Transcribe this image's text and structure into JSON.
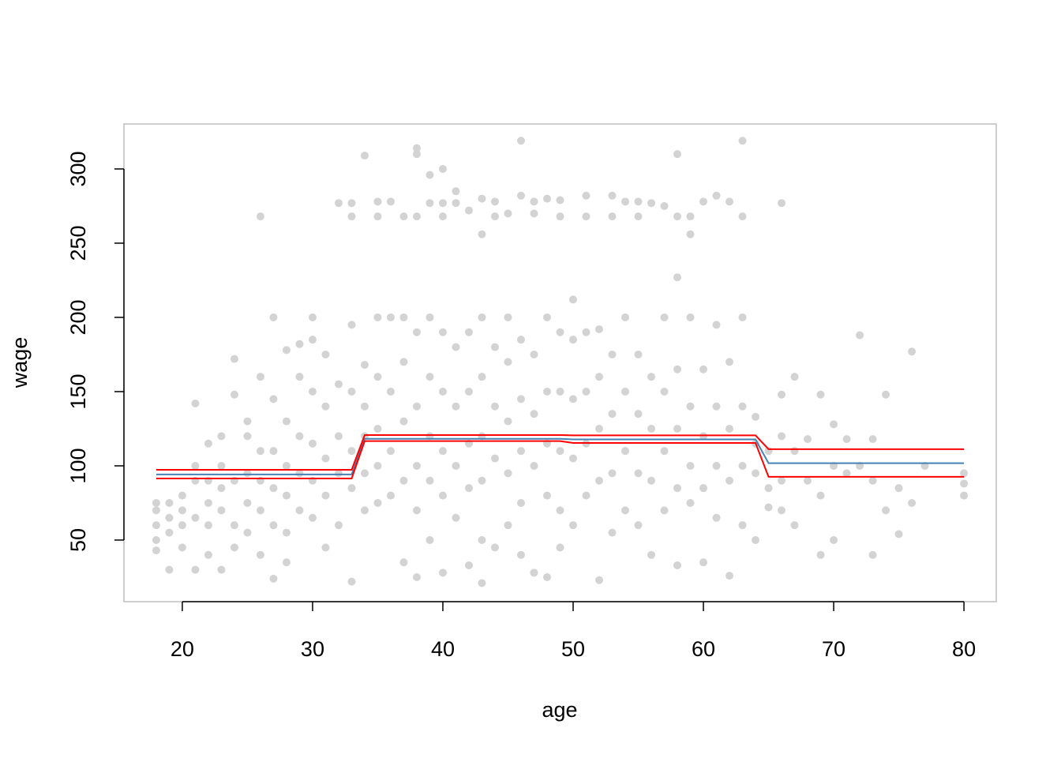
{
  "chart_data": {
    "type": "scatter",
    "xlabel": "age",
    "ylabel": "wage",
    "xlim": [
      15.52,
      82.48
    ],
    "ylim": [
      8.5,
      330.3
    ],
    "xticks": [
      20,
      30,
      40,
      50,
      60,
      70,
      80
    ],
    "yticks": [
      50,
      100,
      150,
      200,
      250,
      300
    ],
    "color": "#d3d3d3",
    "groups": [
      {
        "x": 18,
        "values": [
          70,
          60,
          50,
          75,
          43
        ]
      },
      {
        "x": 19,
        "values": [
          65,
          30,
          55,
          75
        ]
      },
      {
        "x": 20,
        "values": [
          70,
          45,
          80,
          60
        ]
      },
      {
        "x": 21,
        "values": [
          100,
          142,
          30,
          65,
          90
        ]
      },
      {
        "x": 22,
        "values": [
          90,
          115,
          60,
          40,
          75
        ]
      },
      {
        "x": 23,
        "values": [
          85,
          120,
          30,
          70,
          100
        ]
      },
      {
        "x": 24,
        "values": [
          172,
          148,
          90,
          60,
          45
        ]
      },
      {
        "x": 25,
        "values": [
          120,
          95,
          75,
          55,
          130
        ]
      },
      {
        "x": 26,
        "values": [
          268,
          160,
          110,
          90,
          70,
          40
        ]
      },
      {
        "x": 27,
        "values": [
          200,
          145,
          110,
          85,
          60,
          24
        ]
      },
      {
        "x": 28,
        "values": [
          178,
          130,
          100,
          80,
          35,
          55
        ]
      },
      {
        "x": 29,
        "values": [
          182,
          160,
          120,
          95,
          70
        ]
      },
      {
        "x": 30,
        "values": [
          200,
          185,
          150,
          115,
          90,
          65
        ]
      },
      {
        "x": 31,
        "values": [
          175,
          140,
          105,
          80,
          45
        ]
      },
      {
        "x": 32,
        "values": [
          277,
          155,
          120,
          95,
          60
        ]
      },
      {
        "x": 33,
        "values": [
          277,
          268,
          195,
          150,
          110,
          85,
          22
        ]
      },
      {
        "x": 34,
        "values": [
          309,
          168,
          140,
          120,
          95,
          70
        ]
      },
      {
        "x": 35,
        "values": [
          278,
          268,
          200,
          160,
          125,
          100,
          75
        ]
      },
      {
        "x": 36,
        "values": [
          278,
          200,
          150,
          110,
          80
        ]
      },
      {
        "x": 37,
        "values": [
          268,
          200,
          170,
          130,
          90,
          35
        ]
      },
      {
        "x": 38,
        "values": [
          314,
          310,
          268,
          190,
          140,
          100,
          70,
          25
        ]
      },
      {
        "x": 39,
        "values": [
          296,
          277,
          200,
          160,
          120,
          90,
          50
        ]
      },
      {
        "x": 40,
        "values": [
          300,
          277,
          268,
          190,
          150,
          110,
          80,
          28
        ]
      },
      {
        "x": 41,
        "values": [
          285,
          277,
          180,
          140,
          100,
          65
        ]
      },
      {
        "x": 42,
        "values": [
          272,
          190,
          150,
          115,
          85,
          33
        ]
      },
      {
        "x": 43,
        "values": [
          280,
          256,
          200,
          160,
          120,
          90,
          50,
          21
        ]
      },
      {
        "x": 44,
        "values": [
          278,
          268,
          180,
          140,
          105,
          45
        ]
      },
      {
        "x": 45,
        "values": [
          270,
          200,
          170,
          130,
          95,
          60
        ]
      },
      {
        "x": 46,
        "values": [
          319,
          282,
          185,
          145,
          110,
          75,
          40
        ]
      },
      {
        "x": 47,
        "values": [
          278,
          270,
          175,
          135,
          100,
          28
        ]
      },
      {
        "x": 48,
        "values": [
          280,
          200,
          150,
          115,
          80,
          25
        ]
      },
      {
        "x": 49,
        "values": [
          279,
          268,
          190,
          150,
          110,
          70,
          45
        ]
      },
      {
        "x": 50,
        "values": [
          212,
          185,
          145,
          105,
          60
        ]
      },
      {
        "x": 51,
        "values": [
          282,
          268,
          190,
          150,
          115,
          80
        ]
      },
      {
        "x": 52,
        "values": [
          192,
          160,
          125,
          90,
          23
        ]
      },
      {
        "x": 53,
        "values": [
          282,
          268,
          175,
          135,
          95,
          55
        ]
      },
      {
        "x": 54,
        "values": [
          278,
          200,
          150,
          110,
          70
        ]
      },
      {
        "x": 55,
        "values": [
          278,
          268,
          175,
          135,
          95,
          60
        ]
      },
      {
        "x": 56,
        "values": [
          277,
          160,
          125,
          90,
          40
        ]
      },
      {
        "x": 57,
        "values": [
          275,
          200,
          150,
          110,
          70
        ]
      },
      {
        "x": 58,
        "values": [
          310,
          268,
          227,
          165,
          125,
          85,
          33
        ]
      },
      {
        "x": 59,
        "values": [
          268,
          256,
          200,
          140,
          100,
          75
        ]
      },
      {
        "x": 60,
        "values": [
          278,
          165,
          120,
          85,
          35
        ]
      },
      {
        "x": 61,
        "values": [
          282,
          195,
          140,
          100,
          65
        ]
      },
      {
        "x": 62,
        "values": [
          278,
          170,
          125,
          90,
          26
        ]
      },
      {
        "x": 63,
        "values": [
          319,
          268,
          200,
          140,
          100,
          60
        ]
      },
      {
        "x": 64,
        "values": [
          133,
          115,
          95,
          50
        ]
      },
      {
        "x": 65,
        "values": [
          110,
          85,
          72
        ]
      },
      {
        "x": 66,
        "values": [
          277,
          148,
          120,
          90,
          70
        ]
      },
      {
        "x": 67,
        "values": [
          160,
          110,
          60
        ]
      },
      {
        "x": 68,
        "values": [
          118,
          90
        ]
      },
      {
        "x": 69,
        "values": [
          148,
          80,
          40
        ]
      },
      {
        "x": 70,
        "values": [
          128,
          100,
          50
        ]
      },
      {
        "x": 71,
        "values": [
          118,
          95
        ]
      },
      {
        "x": 72,
        "values": [
          188,
          100
        ]
      },
      {
        "x": 73,
        "values": [
          118,
          90,
          40
        ]
      },
      {
        "x": 74,
        "values": [
          148,
          70
        ]
      },
      {
        "x": 75,
        "values": [
          85,
          54
        ]
      },
      {
        "x": 76,
        "values": [
          177,
          75
        ]
      },
      {
        "x": 77,
        "values": [
          100
        ]
      },
      {
        "x": 80,
        "values": [
          95,
          88,
          80
        ]
      }
    ],
    "lines": [
      {
        "color": "#4682b4",
        "x": [
          18,
          33,
          34,
          49,
          50,
          64,
          65,
          80
        ],
        "values": [
          94.2,
          94.2,
          118.2,
          118.2,
          117.8,
          117.8,
          101.8,
          101.8
        ]
      },
      {
        "color": "#ff0000",
        "x": [
          18,
          33,
          34,
          49,
          50,
          64,
          65,
          80
        ],
        "values": [
          97.3,
          97.3,
          120.7,
          120.7,
          120.5,
          120.5,
          111.2,
          111.2
        ]
      },
      {
        "color": "#ff0000",
        "x": [
          18,
          33,
          34,
          49,
          50,
          64,
          65,
          80
        ],
        "values": [
          91.5,
          91.5,
          116.7,
          116.7,
          115.4,
          115.4,
          92.6,
          92.6
        ]
      }
    ]
  }
}
